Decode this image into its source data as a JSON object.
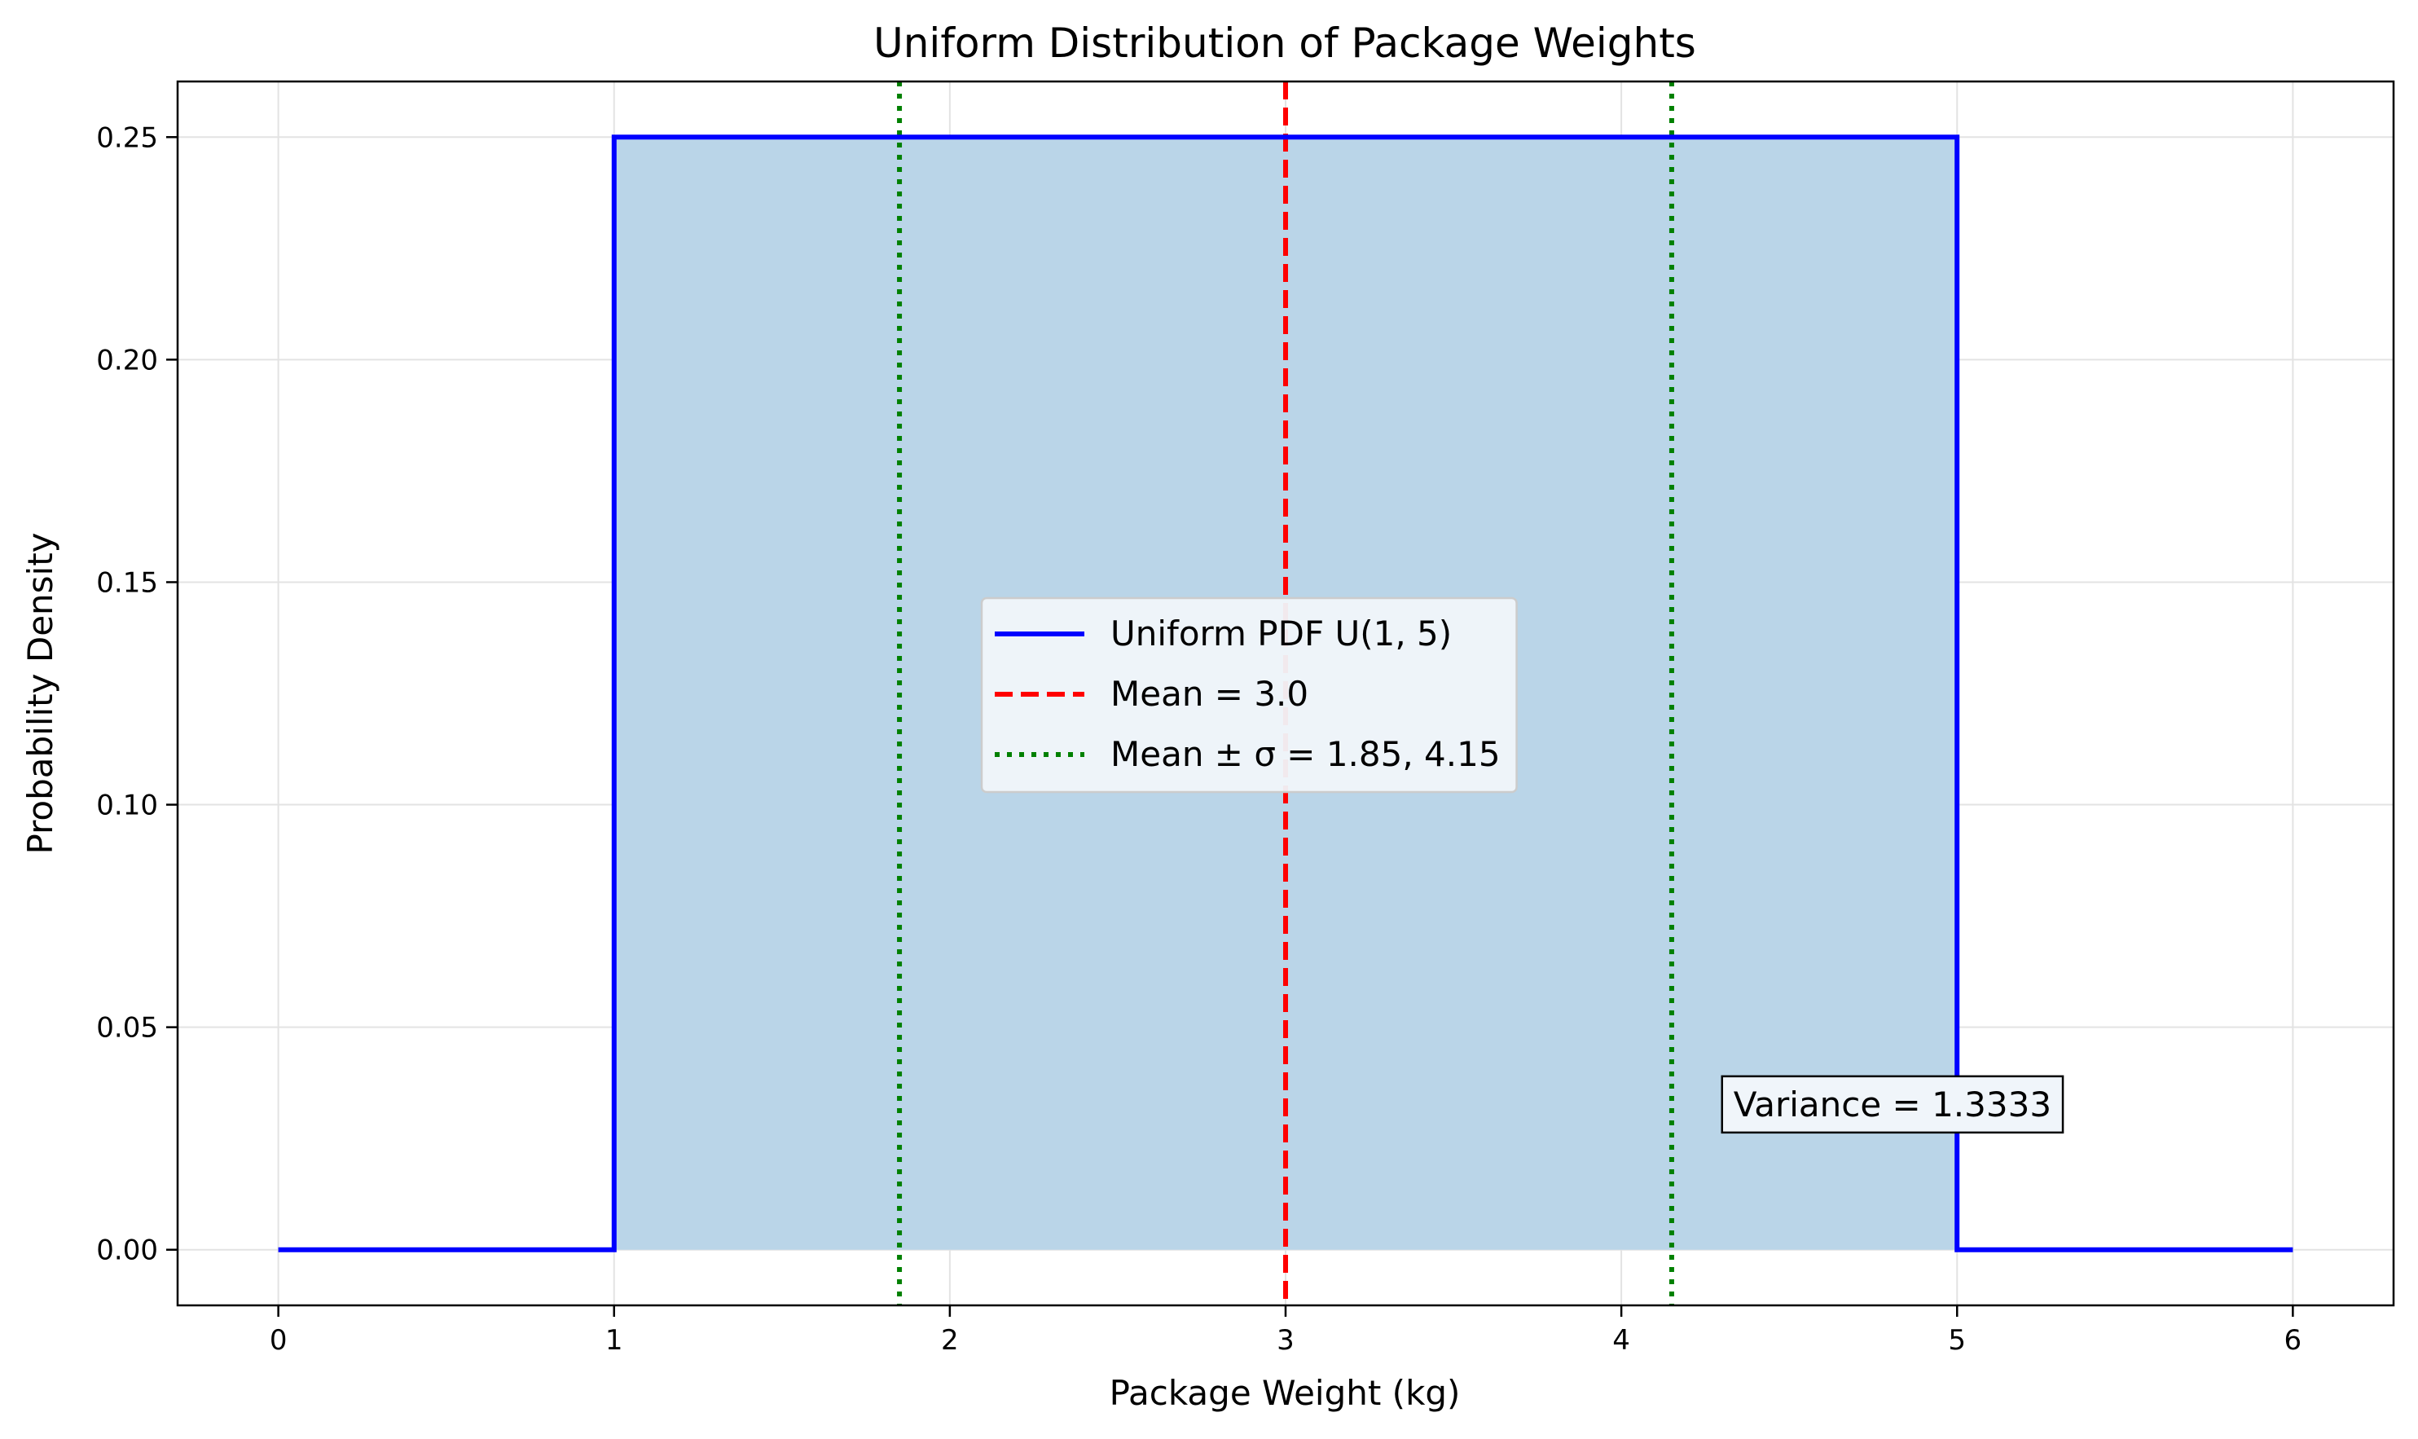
{
  "chart_data": {
    "type": "line",
    "title": "Uniform Distribution of Package Weights",
    "xlabel": "Package Weight (kg)",
    "ylabel": "Probability Density",
    "xlim": [
      -0.3,
      6.3
    ],
    "ylim": [
      -0.0125,
      0.2625
    ],
    "xticks": [
      0,
      1,
      2,
      3,
      4,
      5,
      6
    ],
    "xtick_labels": [
      "0",
      "1",
      "2",
      "3",
      "4",
      "5",
      "6"
    ],
    "yticks": [
      0,
      0.05,
      0.1,
      0.15,
      0.2,
      0.25
    ],
    "ytick_labels": [
      "0.00",
      "0.05",
      "0.10",
      "0.15",
      "0.20",
      "0.25"
    ],
    "grid": true,
    "legend_position": "center",
    "series": [
      {
        "name": "Uniform PDF U(1, 5)",
        "style": "solid",
        "color": "#0000ff",
        "x": [
          0,
          1,
          1,
          5,
          5,
          6
        ],
        "y": [
          0,
          0,
          0.25,
          0.25,
          0,
          0
        ]
      }
    ],
    "fill": {
      "x_range": [
        1,
        5
      ],
      "y": 0.25,
      "color": "#bad5e8"
    },
    "vlines": [
      {
        "name": "Mean = 3.0",
        "x": 3.0,
        "style": "dashed",
        "color": "#ff0000",
        "in_legend": true
      },
      {
        "name": "Mean ± σ = 1.85, 4.15",
        "x": 1.85,
        "style": "dotted",
        "color": "#008000",
        "in_legend": true
      },
      {
        "name": "",
        "x": 4.15,
        "style": "dotted",
        "color": "#008000",
        "in_legend": false
      }
    ],
    "annotations": [
      {
        "text": "Variance = 1.3333",
        "x": 4.3,
        "y": 0.03
      }
    ]
  }
}
